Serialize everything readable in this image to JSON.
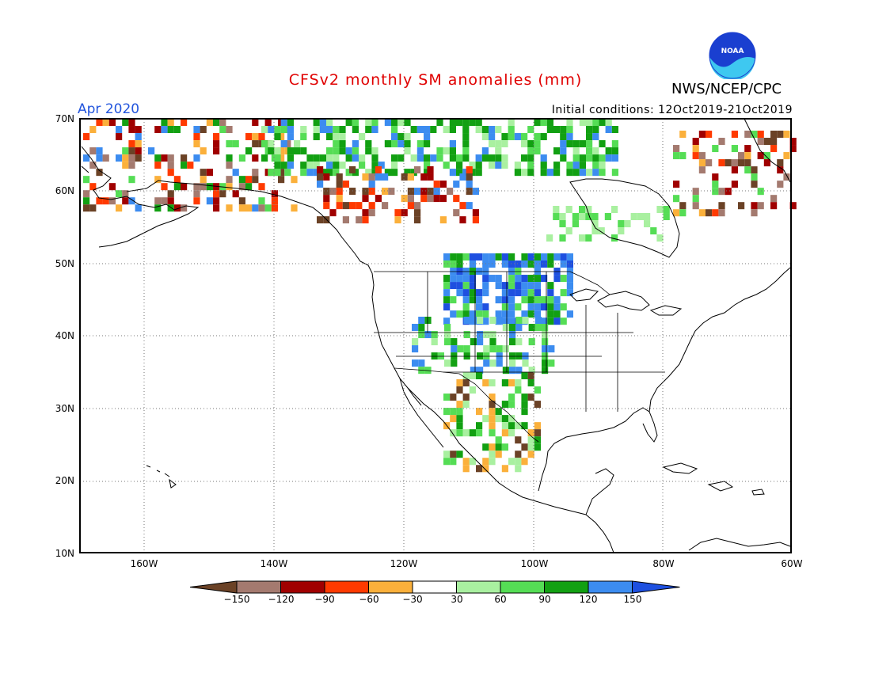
{
  "title": "CFSv2 monthly SM anomalies (mm)",
  "valid_month": "Apr 2020",
  "initial_conditions": "Initial conditions: 12Oct2019-21Oct2019",
  "agency": "NWS/NCEP/CPC",
  "logo_text": "NOAA",
  "lat_labels": [
    "70N",
    "60N",
    "50N",
    "40N",
    "30N",
    "20N",
    "10N"
  ],
  "lon_labels": [
    "160W",
    "140W",
    "120W",
    "100W",
    "80W",
    "60W"
  ],
  "colorbar": {
    "labels": [
      "−150",
      "−120",
      "−90",
      "−60",
      "−30",
      "30",
      "60",
      "90",
      "120",
      "150"
    ],
    "colors": [
      "#6b4226",
      "#a47a6f",
      "#a00000",
      "#ff3a00",
      "#fbb03b",
      "#ffffff",
      "#a9f0a0",
      "#55dd55",
      "#12a012",
      "#3c8cf0",
      "#1e50e0"
    ]
  },
  "colors": {
    "title": "#e00000",
    "month": "#2255dd"
  }
}
